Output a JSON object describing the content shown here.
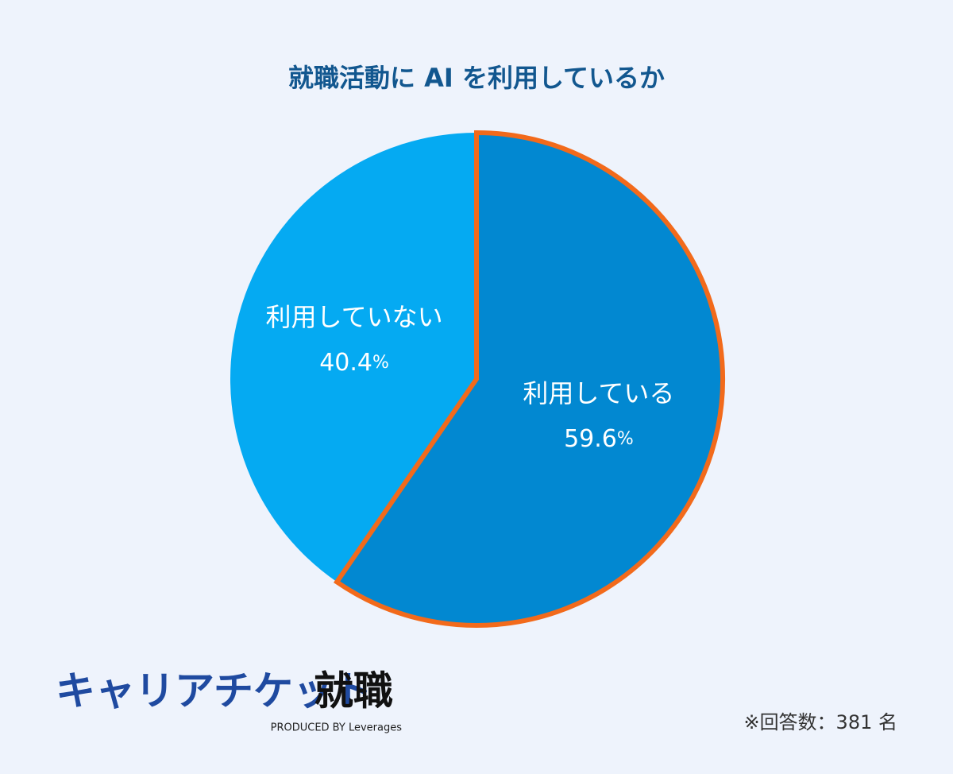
{
  "chart_data": {
    "type": "pie",
    "title": "就職活動に AI を利用しているか",
    "categories": [
      "利用している",
      "利用していない"
    ],
    "values": [
      59.6,
      40.4
    ],
    "value_labels": [
      "59.6%",
      "40.4%"
    ],
    "colors": [
      "#0288d1",
      "#05aaf2"
    ],
    "outline_colors": [
      "#f26a1b",
      null
    ],
    "start_angle": 0,
    "direction": "clockwise",
    "note": "※回答数：381 名"
  },
  "logo": {
    "name": "キャリアチケット",
    "suffix": "就職",
    "producer": "PRODUCED BY Leverages"
  }
}
